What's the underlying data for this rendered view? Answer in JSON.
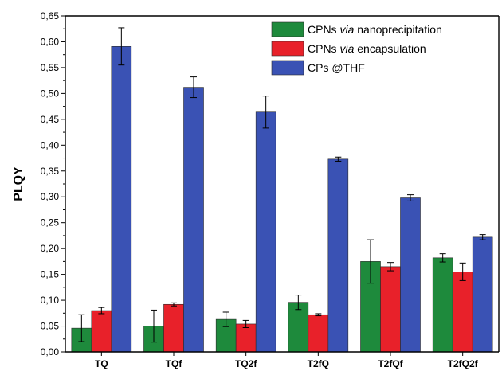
{
  "chart_data": {
    "type": "bar",
    "categories": [
      "TQ",
      "TQf",
      "TQ2f",
      "T2fQ",
      "T2fQf",
      "T2fQ2f"
    ],
    "ylabel": "PLQY",
    "ylim": [
      0,
      0.65
    ],
    "yticks": [
      "0,00",
      "0,05",
      "0,10",
      "0,15",
      "0,20",
      "0,25",
      "0,30",
      "0,35",
      "0,40",
      "0,45",
      "0,50",
      "0,55",
      "0,60",
      "0,65"
    ],
    "legend_position": "top-right",
    "series": [
      {
        "name_parts": [
          "CPNs ",
          "via",
          " nanoprecipitation"
        ],
        "color": "#1e8a3c",
        "values": [
          0.046,
          0.05,
          0.063,
          0.096,
          0.175,
          0.182
        ],
        "errors": [
          0.026,
          0.031,
          0.014,
          0.014,
          0.042,
          0.008
        ]
      },
      {
        "name_parts": [
          "CPNs ",
          "via",
          " encapsulation"
        ],
        "color": "#e8212a",
        "values": [
          0.08,
          0.092,
          0.054,
          0.072,
          0.165,
          0.155
        ],
        "errors": [
          0.006,
          0.003,
          0.007,
          0.002,
          0.008,
          0.017
        ]
      },
      {
        "name_parts": [
          "CPs @THF"
        ],
        "color": "#3a52b4",
        "values": [
          0.591,
          0.512,
          0.464,
          0.373,
          0.298,
          0.222
        ],
        "errors": [
          0.036,
          0.02,
          0.031,
          0.004,
          0.006,
          0.005
        ]
      }
    ]
  }
}
